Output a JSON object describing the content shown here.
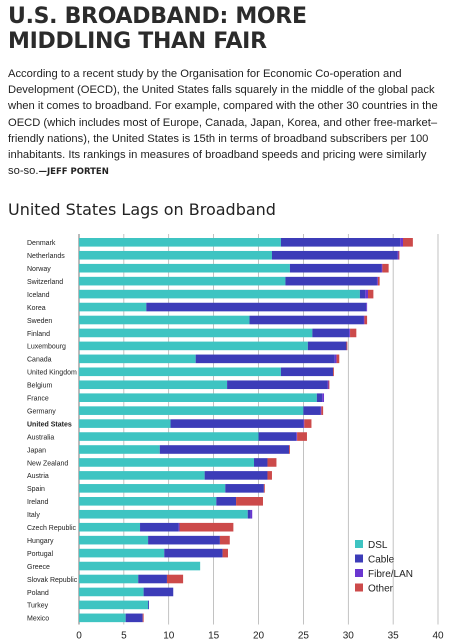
{
  "article": {
    "headline_line1": "U.S. BROADBAND: MORE",
    "headline_line2": "MIDDLING THAN FAIR",
    "body": "According to a recent study by the Organisation for Economic Co-operation and Development (OECD), the United States falls squarely in the middle of the global pack when it comes to broadband. For example, compared with the other 30 countries in the OECD (which includes most of Europe, Canada, Japan, Korea, and other free-market–friendly nations), the United States is 15th in terms of broadband subscribers per 100 inhabitants. Its rankings in measures of broadband speeds and pricing were similarly so-so.",
    "byline": "—JEFF PORTEN"
  },
  "chart_data": {
    "type": "bar",
    "orientation": "horizontal",
    "stacked": true,
    "title": "United States Lags on Broadband",
    "categories": [
      "Denmark",
      "Netherlands",
      "Norway",
      "Switzerland",
      "Iceland",
      "Korea",
      "Sweden",
      "Finland",
      "Luxembourg",
      "Canada",
      "United Kingdom",
      "Belgium",
      "France",
      "Germany",
      "United States",
      "Australia",
      "Japan",
      "New Zealand",
      "Austria",
      "Spain",
      "Ireland",
      "Italy",
      "Czech Republic",
      "Hungary",
      "Portugal",
      "Greece",
      "Slovak Republic",
      "Poland",
      "Turkey",
      "Mexico"
    ],
    "highlight_category": "United States",
    "series": [
      {
        "name": "DSL",
        "color": "#3ec4c2",
        "values": [
          22.5,
          21.5,
          23.5,
          23.0,
          31.3,
          7.5,
          19.0,
          26.0,
          25.5,
          13.0,
          22.5,
          16.5,
          26.5,
          25.0,
          10.2,
          20.0,
          9.0,
          19.5,
          14.0,
          16.3,
          15.3,
          18.8,
          6.8,
          7.7,
          9.5,
          13.5,
          6.6,
          7.2,
          7.7,
          5.2
        ]
      },
      {
        "name": "Cable",
        "color": "#3c3cb8",
        "values": [
          13.3,
          14.0,
          10.2,
          10.2,
          0.6,
          24.5,
          12.7,
          4.1,
          4.3,
          15.5,
          5.8,
          11.2,
          0.6,
          1.9,
          14.8,
          4.2,
          14.4,
          1.5,
          7.0,
          4.3,
          2.2,
          0.3,
          4.3,
          8.0,
          6.5,
          0.0,
          3.2,
          3.3,
          0.1,
          1.9
        ]
      },
      {
        "name": "Fibre/LAN",
        "color": "#6a36d0",
        "values": [
          0.3,
          0.1,
          0.1,
          0.1,
          0.3,
          0.1,
          0.1,
          0.1,
          0.0,
          0.2,
          0.0,
          0.1,
          0.2,
          0.1,
          0.1,
          0.1,
          0.0,
          0.0,
          0.0,
          0.0,
          0.0,
          0.2,
          0.1,
          0.0,
          0.0,
          0.0,
          0.0,
          0.0,
          0.0,
          0.0
        ]
      },
      {
        "name": "Other",
        "color": "#cc4a4a",
        "values": [
          1.1,
          0.1,
          0.7,
          0.2,
          0.6,
          0.0,
          0.3,
          0.7,
          0.1,
          0.3,
          0.1,
          0.1,
          0.0,
          0.2,
          0.8,
          1.1,
          0.1,
          1.0,
          0.5,
          0.1,
          3.0,
          0.0,
          6.0,
          1.1,
          0.6,
          0.0,
          1.8,
          0.0,
          0.0,
          0.1
        ]
      }
    ],
    "xlim": [
      0,
      40
    ],
    "xticks": [
      "0",
      "5",
      "10",
      "15",
      "20",
      "25",
      "30",
      "35",
      "40"
    ],
    "grid": "vertical",
    "legend_position": "bottom-right"
  }
}
